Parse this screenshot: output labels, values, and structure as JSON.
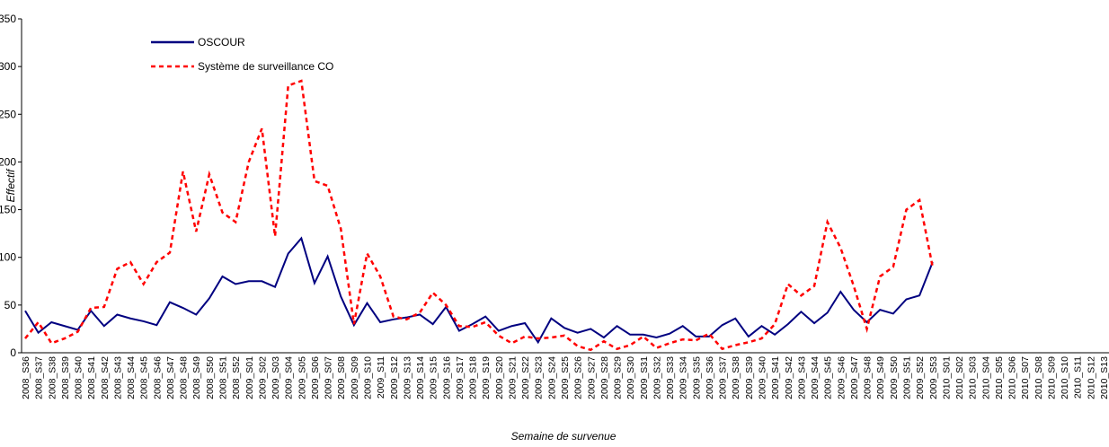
{
  "chart_data": {
    "type": "line",
    "x_label": "Semaine de survenue",
    "y_label": "Effectif",
    "categories": [
      "2008_S36",
      "2008_S37",
      "2008_S38",
      "2008_S39",
      "2008_S40",
      "2008_S41",
      "2008_S42",
      "2008_S43",
      "2008_S44",
      "2008_S45",
      "2008_S46",
      "2008_S47",
      "2008_S48",
      "2008_S49",
      "2008_S50",
      "2008_S51",
      "2008_S52",
      "2009_S01",
      "2009_S02",
      "2009_S03",
      "2009_S04",
      "2009_S05",
      "2009_S06",
      "2009_S07",
      "2009_S08",
      "2009_S09",
      "2009_S10",
      "2009_S11",
      "2009_S12",
      "2009_S13",
      "2009_S14",
      "2009_S15",
      "2009_S16",
      "2009_S17",
      "2009_S18",
      "2009_S19",
      "2009_S20",
      "2009_S21",
      "2009_S22",
      "2009_S23",
      "2009_S24",
      "2009_S25",
      "2009_S26",
      "2009_S27",
      "2009_S28",
      "2009_S29",
      "2009_S30",
      "2009_S31",
      "2009_S32",
      "2009_S33",
      "2009_S34",
      "2009_S35",
      "2009_S36",
      "2009_S37",
      "2009_S38",
      "2009_S39",
      "2009_S40",
      "2009_S41",
      "2009_S42",
      "2009_S43",
      "2009_S44",
      "2009_S45",
      "2009_S46",
      "2009_S47",
      "2009_S48",
      "2009_S49",
      "2009_S50",
      "2009_S51",
      "2009_S52",
      "2009_S53",
      "2010_S01",
      "2010_S02",
      "2010_S03",
      "2010_S04",
      "2010_S05",
      "2010_S06",
      "2010_S07",
      "2010_S08",
      "2010_S09",
      "2010_S10",
      "2010_S11",
      "2010_S12",
      "2010_S13"
    ],
    "series": [
      {
        "name": "OSCOUR",
        "color": "#000080",
        "dashed": false,
        "values": [
          44,
          21,
          32,
          28,
          24,
          44,
          28,
          40,
          36,
          33,
          29,
          53,
          47,
          40,
          57,
          80,
          72,
          75,
          75,
          69,
          104,
          120,
          73,
          101,
          59,
          29,
          52,
          32,
          35,
          37,
          40,
          30,
          48,
          23,
          30,
          38,
          23,
          28,
          31,
          11,
          36,
          26,
          21,
          25,
          16,
          28,
          19,
          19,
          16,
          20,
          28,
          17,
          17,
          29,
          36,
          17,
          28,
          19,
          30,
          43,
          31,
          42,
          64,
          45,
          32,
          45,
          41,
          56,
          60,
          95,
          null,
          null,
          null,
          null,
          null,
          null,
          null,
          null,
          null,
          null,
          null,
          null,
          null
        ]
      },
      {
        "name": "Système de surveillance CO",
        "color": "#ff0000",
        "dashed": true,
        "values": [
          15,
          32,
          10,
          15,
          22,
          47,
          48,
          88,
          95,
          72,
          95,
          105,
          190,
          127,
          187,
          147,
          137,
          200,
          235,
          122,
          280,
          285,
          180,
          175,
          130,
          30,
          104,
          80,
          38,
          35,
          42,
          63,
          50,
          28,
          27,
          32,
          18,
          10,
          17,
          15,
          16,
          18,
          7,
          3,
          12,
          4,
          8,
          17,
          5,
          10,
          14,
          13,
          20,
          4,
          8,
          11,
          15,
          30,
          72,
          60,
          70,
          137,
          110,
          70,
          25,
          80,
          90,
          150,
          160,
          90,
          null,
          null,
          null,
          null,
          null,
          null,
          null,
          null,
          null,
          null,
          null,
          null,
          null
        ]
      }
    ],
    "ylim": [
      0,
      350
    ],
    "yticks": [
      0,
      50,
      100,
      150,
      200,
      250,
      300,
      350
    ],
    "legend": "upper left"
  }
}
